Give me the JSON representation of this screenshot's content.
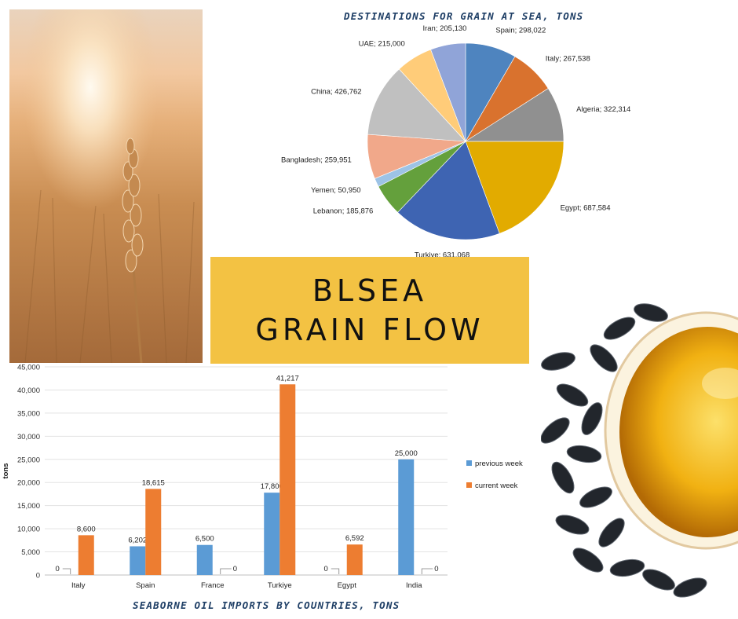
{
  "title": {
    "line1": "BLSEA",
    "line2": "GRAIN FLOW"
  },
  "colors": {
    "title_bg": "#f3c243",
    "caption": "#1f3f66",
    "previous_week": "#5b9bd5",
    "current_week": "#ed7d31"
  },
  "chart_data": [
    {
      "type": "pie",
      "title": "DESTINATIONS FOR GRAIN AT SEA, TONS",
      "slices": [
        {
          "label": "Spain",
          "value": 298022,
          "display": "298,022",
          "color": "#4e84bf"
        },
        {
          "label": "Italy",
          "value": 267538,
          "display": "267,538",
          "color": "#d9722e"
        },
        {
          "label": "Algeria",
          "value": 322314,
          "display": "322,314",
          "color": "#909090"
        },
        {
          "label": "Egypt",
          "value": 687584,
          "display": "687,584",
          "color": "#e2ab00"
        },
        {
          "label": "Turkiye",
          "value": 631068,
          "display": "631,068",
          "color": "#3e64b2"
        },
        {
          "label": "Lebanon",
          "value": 185876,
          "display": "185,876",
          "color": "#64a03c"
        },
        {
          "label": "Yemen",
          "value": 50950,
          "display": "50,950",
          "color": "#9dc3e6"
        },
        {
          "label": "Bangladesh",
          "value": 259951,
          "display": "259,951",
          "color": "#f1a88a"
        },
        {
          "label": "China",
          "value": 426762,
          "display": "426,762",
          "color": "#c0c0c0"
        },
        {
          "label": "UAE",
          "value": 215000,
          "display": "215,000",
          "color": "#ffcc79"
        },
        {
          "label": "Iran",
          "value": 205130,
          "display": "205,130",
          "color": "#90a4d8"
        }
      ]
    },
    {
      "type": "bar",
      "title": "SEABORNE OIL IMPORTS BY COUNTRIES, TONS",
      "ylabel": "tons",
      "ylim": [
        0,
        45000
      ],
      "yticks": [
        "0",
        "5,000",
        "10,000",
        "15,000",
        "20,000",
        "25,000",
        "30,000",
        "35,000",
        "40,000",
        "45,000"
      ],
      "categories": [
        "Italy",
        "Spain",
        "France",
        "Turkiye",
        "Egypt",
        "India"
      ],
      "legend_position": "right",
      "series": [
        {
          "name": "previous week",
          "color": "#5b9bd5",
          "values": [
            0,
            6202,
            6500,
            17800,
            0,
            25000
          ],
          "labels": [
            "0",
            "6,202",
            "6,500",
            "17,800",
            "0",
            "25,000"
          ]
        },
        {
          "name": "current week",
          "color": "#ed7d31",
          "values": [
            8600,
            18615,
            0,
            41217,
            6592,
            0
          ],
          "labels": [
            "8,600",
            "18,615",
            "0",
            "41,217",
            "6,592",
            "0"
          ]
        }
      ]
    }
  ]
}
